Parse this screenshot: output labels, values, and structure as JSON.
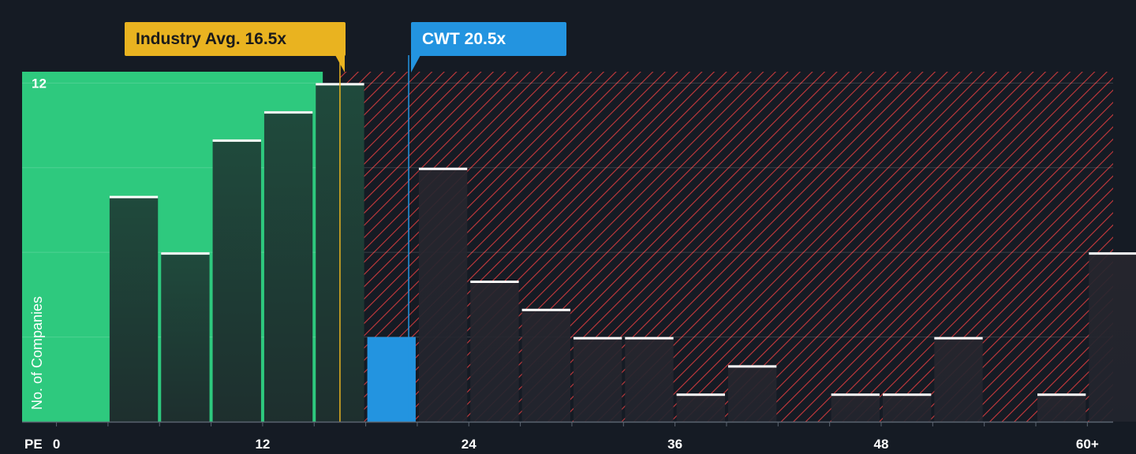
{
  "chart_data": {
    "type": "bar",
    "x_label": "PE",
    "y_label": "No. of Companies",
    "x_ticks": [
      "0",
      "12",
      "24",
      "36",
      "48",
      "60+"
    ],
    "x_tick_values": [
      0,
      12,
      24,
      36,
      48,
      60
    ],
    "y_tick_labels": [
      "12"
    ],
    "y_tick_values": [
      12
    ],
    "xlim": [
      -2,
      61.5
    ],
    "ylim": [
      0,
      12.4
    ],
    "bin_width": 3,
    "bins": [
      {
        "x0": 3,
        "value": 8
      },
      {
        "x0": 6,
        "value": 6
      },
      {
        "x0": 9,
        "value": 10
      },
      {
        "x0": 12,
        "value": 11
      },
      {
        "x0": 15,
        "value": 12
      },
      {
        "x0": 18,
        "value": 3
      },
      {
        "x0": 21,
        "value": 9
      },
      {
        "x0": 24,
        "value": 5
      },
      {
        "x0": 27,
        "value": 4
      },
      {
        "x0": 30,
        "value": 3
      },
      {
        "x0": 33,
        "value": 3
      },
      {
        "x0": 36,
        "value": 1
      },
      {
        "x0": 39,
        "value": 2
      },
      {
        "x0": 42,
        "value": 0
      },
      {
        "x0": 45,
        "value": 1
      },
      {
        "x0": 48,
        "value": 1
      },
      {
        "x0": 51,
        "value": 3
      },
      {
        "x0": 54,
        "value": 0
      },
      {
        "x0": 57,
        "value": 1
      },
      {
        "x0": 60,
        "value": 6
      }
    ],
    "highlighted_bin_x0": 18,
    "industry_avg": 16.5,
    "company_value": 20.5,
    "industry_label": "Industry Avg. 16.5x",
    "company_label": "CWT 20.5x",
    "fair_range": [
      -2,
      15.5
    ],
    "expensive_range": [
      16.5,
      61.5
    ],
    "colors": {
      "background": "#151b24",
      "fair_zone": "#2ec97e",
      "bar_dark": "#1e3a33",
      "bar_red_zone": "#262730",
      "expensive_stripe": "#c8393c",
      "highlight": "#2394e0",
      "industry_line": "#e9b320",
      "bar_cap": "#ffffff",
      "gridline": "#2f3a47"
    }
  }
}
